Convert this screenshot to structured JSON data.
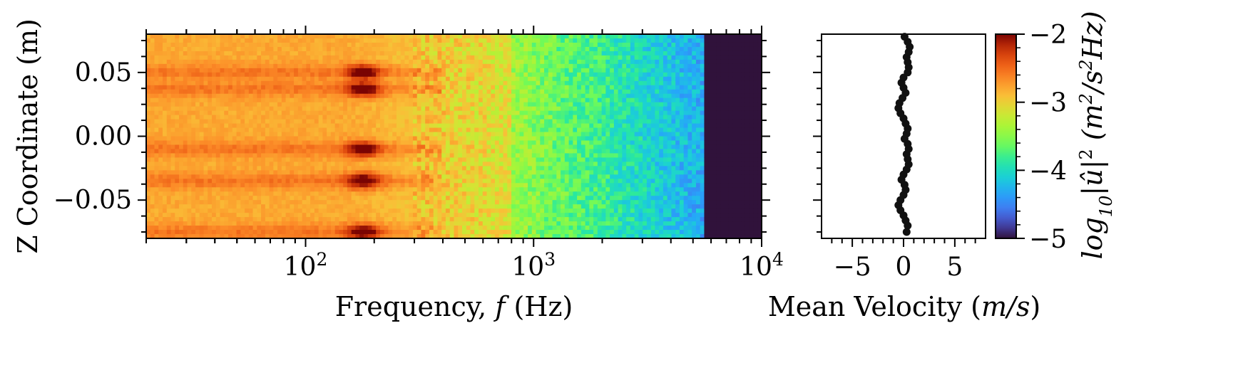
{
  "chart_data": [
    {
      "type": "heatmap",
      "xlabel": "Frequency, f (Hz)",
      "ylabel": "Z Coordinate (m)",
      "xscale": "log",
      "xlim": [
        20,
        10000
      ],
      "ylim": [
        -0.08,
        0.08
      ],
      "x_ticks": [
        100,
        1000,
        10000
      ],
      "x_tick_labels": [
        {
          "base": "10",
          "exp": "2"
        },
        {
          "base": "10",
          "exp": "3"
        },
        {
          "base": "10",
          "exp": "4"
        }
      ],
      "y_ticks": [
        0.05,
        0.0,
        -0.05
      ],
      "y_tick_labels": [
        "0.05",
        "0.00",
        "−0.05"
      ],
      "colorbar": {
        "label": "log10|û|² (m²/s²Hz)",
        "label_parts": {
          "log": "log",
          "sub": "10",
          "mid": "|û|",
          "sq": "2",
          "unit_a": "(m",
          "unit_b": "/s",
          "unit_c": "Hz)"
        },
        "range": [
          -5,
          -2
        ],
        "ticks": [
          -2,
          -3,
          -4,
          -5
        ],
        "tick_labels": [
          "−2",
          "−3",
          "−4",
          "−5"
        ],
        "colormap": "turbo"
      },
      "features": {
        "broadband_level_low_f": -2.8,
        "peak_frequency_hz": 180,
        "peak_level": -2.1,
        "peak_z_bands": [
          0.05,
          0.037,
          -0.01,
          -0.035,
          -0.075
        ],
        "rolloff_start_hz": 800,
        "cutoff_frequency_hz": 5500,
        "above_cutoff_level": -5
      }
    },
    {
      "type": "scatter",
      "xlabel": "Mean Velocity (m/s)",
      "xlim": [
        -8,
        8
      ],
      "ylim": [
        -0.08,
        0.08
      ],
      "x_ticks": [
        -5,
        0,
        5
      ],
      "x_tick_labels": [
        "−5",
        "0",
        "5"
      ],
      "series": [
        {
          "marker": "circle",
          "color": "#111111",
          "z": [
            -0.075,
            -0.07,
            -0.066,
            -0.062,
            -0.058,
            -0.054,
            -0.05,
            -0.046,
            -0.042,
            -0.038,
            -0.034,
            -0.03,
            -0.026,
            -0.022,
            -0.018,
            -0.014,
            -0.01,
            -0.006,
            -0.002,
            0.002,
            0.006,
            0.01,
            0.014,
            0.018,
            0.022,
            0.026,
            0.03,
            0.034,
            0.038,
            0.042,
            0.046,
            0.05,
            0.054,
            0.058,
            0.062,
            0.066,
            0.07,
            0.074,
            0.078
          ],
          "velocity": [
            0.3,
            0.4,
            0.2,
            0.0,
            -0.3,
            -0.5,
            -0.3,
            0.0,
            0.2,
            0.1,
            -0.2,
            0.0,
            0.3,
            0.5,
            0.4,
            0.3,
            0.5,
            0.4,
            0.1,
            0.3,
            0.4,
            0.2,
            0.0,
            -0.3,
            -0.5,
            -0.4,
            -0.1,
            0.2,
            0.0,
            -0.2,
            0.0,
            0.4,
            0.5,
            0.4,
            0.3,
            0.5,
            0.6,
            0.4,
            0.1
          ]
        }
      ]
    }
  ]
}
